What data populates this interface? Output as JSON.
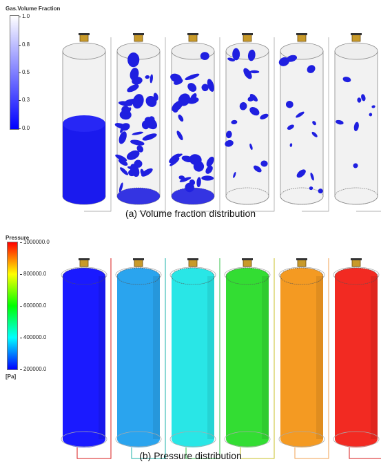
{
  "colors": {
    "liquid": "#1a1aee",
    "blob": "#1f1fe0",
    "shell": "#d8d8d8",
    "nozzle": "#c89a2a",
    "pressure_low": "#0000ff",
    "pressure_high": "#ff0000"
  },
  "panel_a": {
    "legend_title": "Gas.Volume Fraction",
    "ticks": [
      "1.0",
      "0.8",
      "0.5",
      "0.3",
      "0.0"
    ],
    "caption": "(a) Volume fraction distribution",
    "cylinders": [
      {
        "content": "liquid"
      },
      {
        "content": "blobs",
        "density": 0.95
      },
      {
        "content": "blobs",
        "density": 0.75
      },
      {
        "content": "blobs",
        "density": 0.45
      },
      {
        "content": "blobs",
        "density": 0.35
      },
      {
        "content": "blobs",
        "density": 0.2
      }
    ]
  },
  "panel_b": {
    "legend_title": "Pressure",
    "ticks": [
      "1000000.0",
      "800000.0",
      "600000.0",
      "400000.0",
      "200000.0"
    ],
    "unit": "[Pa]",
    "caption": "(b) Pressure distribution",
    "cylinders": [
      {
        "color": "#1a1aff",
        "line_color": "#d81b1b"
      },
      {
        "color": "#2aa4ee",
        "line_color": "#19b0a8"
      },
      {
        "color": "#29e6e6",
        "line_color": "#34c24b"
      },
      {
        "color": "#33dd33",
        "line_color": "#c8c22a"
      },
      {
        "color": "#f49a22",
        "line_color": "#f0a050"
      },
      {
        "color": "#f22a22",
        "line_color": "#d81b1b"
      }
    ]
  }
}
